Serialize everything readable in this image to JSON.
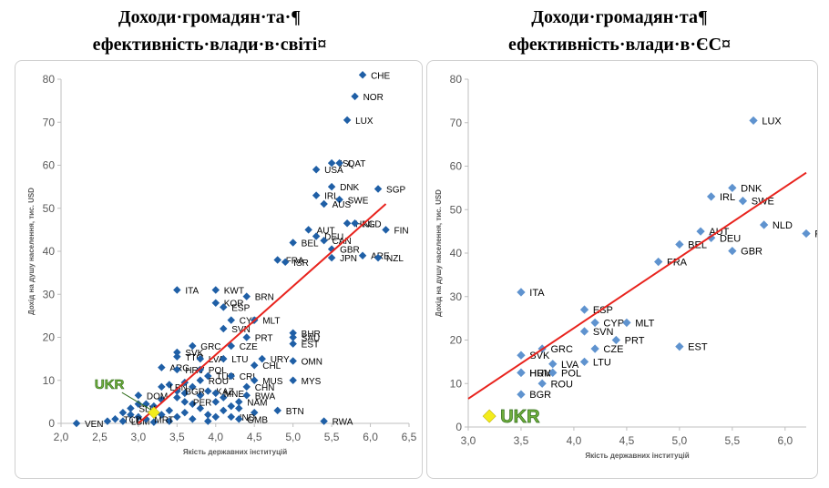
{
  "titles": {
    "left": "Доходи·громадян·та·¶ ефективність·влади·в·світі¤",
    "right": "Доходи·громадян·та¶ ефективність·влади·в·ЄС¤"
  },
  "chart_data": [
    {
      "type": "scatter",
      "title": "Доходи·громадян·та·¶ ефективність·влади·в·світі¤",
      "xlabel": "Якість державних інституцій",
      "ylabel": "Дохід на душу населення, тис. USD",
      "xlim": [
        2.0,
        6.5
      ],
      "ylim": [
        0,
        80
      ],
      "xticks": [
        "2,0",
        "2,5",
        "3,0",
        "3,5",
        "4,0",
        "4,5",
        "5,0",
        "5,5",
        "6,0",
        "6,5"
      ],
      "yticks": [
        "0",
        "10",
        "20",
        "30",
        "40",
        "50",
        "60",
        "70",
        "80"
      ],
      "grid": false,
      "marker_color": "#1f5fa6",
      "trend_color": "#e8231d",
      "trendline": {
        "x": [
          3.0,
          6.2
        ],
        "y": [
          0,
          51
        ]
      },
      "highlight": {
        "label": "UKR",
        "x": 3.2,
        "y": 2.5,
        "color": "#f3ec1c"
      },
      "points": [
        {
          "label": "CHE",
          "x": 5.9,
          "y": 81
        },
        {
          "label": "NOR",
          "x": 5.8,
          "y": 76
        },
        {
          "label": "LUX",
          "x": 5.7,
          "y": 70.5
        },
        {
          "label": "ISL",
          "x": 5.5,
          "y": 60.5
        },
        {
          "label": "QAT",
          "x": 5.6,
          "y": 60.5
        },
        {
          "label": "USA",
          "x": 5.3,
          "y": 59
        },
        {
          "label": "DNK",
          "x": 5.5,
          "y": 55
        },
        {
          "label": "SGP",
          "x": 6.1,
          "y": 54.5
        },
        {
          "label": "IRL",
          "x": 5.3,
          "y": 53
        },
        {
          "label": "SWE",
          "x": 5.6,
          "y": 52
        },
        {
          "label": "AUS",
          "x": 5.4,
          "y": 51
        },
        {
          "label": "HKG",
          "x": 5.7,
          "y": 46.5
        },
        {
          "label": "NLD",
          "x": 5.8,
          "y": 46.5
        },
        {
          "label": "FIN",
          "x": 6.2,
          "y": 45
        },
        {
          "label": "AUT",
          "x": 5.2,
          "y": 45
        },
        {
          "label": "DEU",
          "x": 5.3,
          "y": 43.5
        },
        {
          "label": "CAN",
          "x": 5.4,
          "y": 42.5
        },
        {
          "label": "BEL",
          "x": 5.0,
          "y": 42
        },
        {
          "label": "GBR",
          "x": 5.5,
          "y": 40.5
        },
        {
          "label": "FRA",
          "x": 4.8,
          "y": 38
        },
        {
          "label": "ISR",
          "x": 4.9,
          "y": 37.5
        },
        {
          "label": "JPN",
          "x": 5.5,
          "y": 38.5
        },
        {
          "label": "ARE",
          "x": 5.9,
          "y": 39
        },
        {
          "label": "NZL",
          "x": 6.1,
          "y": 38.5
        },
        {
          "label": "ITA",
          "x": 3.5,
          "y": 31
        },
        {
          "label": "KWT",
          "x": 4.0,
          "y": 31
        },
        {
          "label": "BRN",
          "x": 4.4,
          "y": 29.5
        },
        {
          "label": "KOR",
          "x": 4.0,
          "y": 28
        },
        {
          "label": "ESP",
          "x": 4.1,
          "y": 27
        },
        {
          "label": "CYP",
          "x": 4.2,
          "y": 24
        },
        {
          "label": "MLT",
          "x": 4.5,
          "y": 24
        },
        {
          "label": "SVN",
          "x": 4.1,
          "y": 22
        },
        {
          "label": "BHR",
          "x": 5.0,
          "y": 21
        },
        {
          "label": "SAU",
          "x": 5.0,
          "y": 20
        },
        {
          "label": "EST",
          "x": 5.0,
          "y": 18.5
        },
        {
          "label": "PRT",
          "x": 4.4,
          "y": 20
        },
        {
          "label": "CZE",
          "x": 4.2,
          "y": 18
        },
        {
          "label": "GRC",
          "x": 3.7,
          "y": 18
        },
        {
          "label": "SVK",
          "x": 3.5,
          "y": 16.5
        },
        {
          "label": "TTO",
          "x": 3.5,
          "y": 15.5
        },
        {
          "label": "LVA",
          "x": 3.8,
          "y": 15
        },
        {
          "label": "LTU",
          "x": 4.1,
          "y": 15
        },
        {
          "label": "URY",
          "x": 4.6,
          "y": 15
        },
        {
          "label": "OMN",
          "x": 5.0,
          "y": 14.5
        },
        {
          "label": "CHL",
          "x": 4.5,
          "y": 13.5
        },
        {
          "label": "ARG",
          "x": 3.3,
          "y": 13
        },
        {
          "label": "HRV",
          "x": 3.5,
          "y": 12.5
        },
        {
          "label": "POL",
          "x": 3.8,
          "y": 12.5
        },
        {
          "label": "TUR",
          "x": 3.9,
          "y": 11
        },
        {
          "label": "CRI",
          "x": 4.2,
          "y": 11
        },
        {
          "label": "MUS",
          "x": 4.5,
          "y": 10
        },
        {
          "label": "MYS",
          "x": 5.0,
          "y": 10
        },
        {
          "label": "ROU",
          "x": 3.8,
          "y": 10
        },
        {
          "label": "LBN",
          "x": 3.3,
          "y": 8.5
        },
        {
          "label": "BGR",
          "x": 3.5,
          "y": 7.5
        },
        {
          "label": "KAZ",
          "x": 3.9,
          "y": 7.5
        },
        {
          "label": "MNE",
          "x": 4.0,
          "y": 7
        },
        {
          "label": "CHN",
          "x": 4.4,
          "y": 8.5
        },
        {
          "label": "BWA",
          "x": 4.4,
          "y": 6.5
        },
        {
          "label": "DOM",
          "x": 3.0,
          "y": 6.5
        },
        {
          "label": "NAM",
          "x": 4.3,
          "y": 5
        },
        {
          "label": "PER",
          "x": 3.6,
          "y": 5
        },
        {
          "label": "SLV",
          "x": 2.9,
          "y": 3.5
        },
        {
          "label": "BTN",
          "x": 4.8,
          "y": 3
        },
        {
          "label": "IND",
          "x": 4.2,
          "y": 1.5
        },
        {
          "label": "GMB",
          "x": 4.3,
          "y": 1
        },
        {
          "label": "VEN",
          "x": 2.2,
          "y": 0
        },
        {
          "label": "TCD",
          "x": 2.7,
          "y": 1
        },
        {
          "label": "LBM",
          "x": 2.8,
          "y": 0.5
        },
        {
          "label": "MRT",
          "x": 3.1,
          "y": 1
        },
        {
          "label": "RWA",
          "x": 5.4,
          "y": 0.5
        }
      ],
      "cluster_points": [
        [
          3.1,
          4.5
        ],
        [
          3.2,
          4
        ],
        [
          3.3,
          5.5
        ],
        [
          3.4,
          3
        ],
        [
          3.5,
          6
        ],
        [
          3.6,
          2.5
        ],
        [
          3.7,
          4.5
        ],
        [
          3.8,
          3.5
        ],
        [
          3.9,
          2
        ],
        [
          4.0,
          5
        ],
        [
          4.1,
          3
        ],
        [
          4.2,
          4
        ],
        [
          3.3,
          2
        ],
        [
          3.5,
          1.5
        ],
        [
          3.7,
          1
        ],
        [
          3.9,
          0.5
        ],
        [
          4.0,
          1.5
        ],
        [
          3.4,
          0.5
        ],
        [
          3.6,
          7
        ],
        [
          3.8,
          6.5
        ],
        [
          4.1,
          6
        ],
        [
          2.9,
          2
        ],
        [
          3.0,
          1.5
        ],
        [
          3.2,
          0.3
        ],
        [
          3.4,
          9
        ],
        [
          3.7,
          8.5
        ],
        [
          4.3,
          3.5
        ],
        [
          4.5,
          2.5
        ],
        [
          3.0,
          4.5
        ],
        [
          2.8,
          2.5
        ],
        [
          2.6,
          0.5
        ],
        [
          3.6,
          9.5
        ]
      ]
    },
    {
      "type": "scatter",
      "title": "Доходи·громадян·та¶ ефективність·влади·в·ЄС¤",
      "xlabel": "Якість державних інституцій",
      "ylabel": "Дохід на душу населення, тис. USD",
      "xlim": [
        3.0,
        6.2
      ],
      "ylim": [
        0,
        80
      ],
      "xticks": [
        "3,0",
        "3,5",
        "4,0",
        "4,5",
        "5,0",
        "5,5",
        "6,0"
      ],
      "yticks": [
        "0",
        "10",
        "20",
        "30",
        "40",
        "50",
        "60",
        "70",
        "80"
      ],
      "grid": false,
      "marker_color": "#5f93cf",
      "trend_color": "#e8231d",
      "trendline": {
        "x": [
          3.0,
          6.2
        ],
        "y": [
          6.5,
          58.5
        ]
      },
      "highlight": {
        "label": "UKR",
        "x": 3.2,
        "y": 2.5,
        "color": "#f3ec1c"
      },
      "points": [
        {
          "label": "LUX",
          "x": 5.7,
          "y": 70.5
        },
        {
          "label": "DNK",
          "x": 5.5,
          "y": 55
        },
        {
          "label": "IRL",
          "x": 5.3,
          "y": 53
        },
        {
          "label": "SWE",
          "x": 5.6,
          "y": 52
        },
        {
          "label": "NLD",
          "x": 5.8,
          "y": 46.5
        },
        {
          "label": "FIN",
          "x": 6.2,
          "y": 44.5
        },
        {
          "label": "AUT",
          "x": 5.2,
          "y": 45
        },
        {
          "label": "DEU",
          "x": 5.3,
          "y": 43.5
        },
        {
          "label": "BEL",
          "x": 5.0,
          "y": 42
        },
        {
          "label": "GBR",
          "x": 5.5,
          "y": 40.5
        },
        {
          "label": "FRA",
          "x": 4.8,
          "y": 38
        },
        {
          "label": "ITA",
          "x": 3.5,
          "y": 31
        },
        {
          "label": "ESP",
          "x": 4.1,
          "y": 27
        },
        {
          "label": "CYP",
          "x": 4.2,
          "y": 24
        },
        {
          "label": "MLT",
          "x": 4.5,
          "y": 24
        },
        {
          "label": "SVN",
          "x": 4.1,
          "y": 22
        },
        {
          "label": "PRT",
          "x": 4.4,
          "y": 20
        },
        {
          "label": "EST",
          "x": 5.0,
          "y": 18.5
        },
        {
          "label": "GRC",
          "x": 3.7,
          "y": 18
        },
        {
          "label": "CZE",
          "x": 4.2,
          "y": 18
        },
        {
          "label": "SVK",
          "x": 3.5,
          "y": 16.5
        },
        {
          "label": "LVA",
          "x": 3.8,
          "y": 14.5
        },
        {
          "label": "LTU",
          "x": 4.1,
          "y": 15
        },
        {
          "label": "HUN",
          "x": 3.5,
          "y": 12.5
        },
        {
          "label": "POL",
          "x": 3.8,
          "y": 12.5
        },
        {
          "label": "HRV",
          "x": 3.5,
          "y": 12.5
        },
        {
          "label": "ROU",
          "x": 3.7,
          "y": 10
        },
        {
          "label": "BGR",
          "x": 3.5,
          "y": 7.5
        }
      ]
    }
  ]
}
